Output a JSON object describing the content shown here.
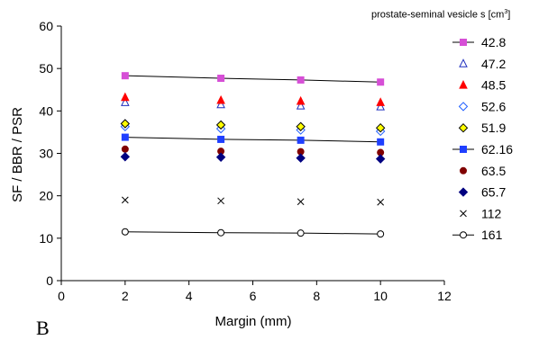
{
  "panel_label": "B",
  "legend_title": {
    "text": "prostate-seminal vesicle s [cm",
    "sup": "3",
    "close": "]"
  },
  "chart_data": {
    "type": "scatter",
    "xlabel": "Margin (mm)",
    "ylabel": "SF / BBR / PSR",
    "xlim": [
      0,
      12
    ],
    "ylim": [
      0,
      60
    ],
    "xticks": [
      0,
      2,
      4,
      6,
      8,
      10,
      12
    ],
    "yticks": [
      0,
      10,
      20,
      30,
      40,
      50,
      60
    ],
    "grid": false,
    "legend_position": "right",
    "x": [
      2,
      5,
      7.5,
      10
    ],
    "series": [
      {
        "name": "42.8",
        "values": [
          48.3,
          47.7,
          47.3,
          46.8
        ],
        "marker": "square",
        "color": "#d64fd6",
        "fill": "#d64fd6",
        "line": true
      },
      {
        "name": "47.2",
        "values": [
          42.0,
          41.5,
          41.2,
          41.0
        ],
        "marker": "triangle",
        "color": "#1f2fbf",
        "fill": "none",
        "line": false
      },
      {
        "name": "48.5",
        "values": [
          43.2,
          42.5,
          42.3,
          42.0
        ],
        "marker": "triangle",
        "color": "#ff0000",
        "fill": "#ff0000",
        "line": false
      },
      {
        "name": "52.6",
        "values": [
          36.3,
          35.8,
          35.5,
          35.2
        ],
        "marker": "diamond",
        "color": "#1f5fff",
        "fill": "none",
        "line": false
      },
      {
        "name": "51.9",
        "values": [
          37.0,
          36.7,
          36.3,
          36.0
        ],
        "marker": "diamond",
        "color": "#000000",
        "fill": "#ffff00",
        "line": false
      },
      {
        "name": "62.16",
        "values": [
          33.8,
          33.3,
          33.1,
          32.7
        ],
        "marker": "square",
        "color": "#1f3fff",
        "fill": "#1f3fff",
        "line": true
      },
      {
        "name": "63.5",
        "values": [
          31.0,
          30.5,
          30.4,
          30.2
        ],
        "marker": "circle",
        "color": "#800000",
        "fill": "#800000",
        "line": false
      },
      {
        "name": "65.7",
        "values": [
          29.2,
          29.1,
          28.9,
          28.7
        ],
        "marker": "diamond",
        "color": "#000080",
        "fill": "#000080",
        "line": false
      },
      {
        "name": "112",
        "values": [
          19.0,
          18.8,
          18.6,
          18.5
        ],
        "marker": "x",
        "color": "#000000",
        "fill": "none",
        "line": false
      },
      {
        "name": "161",
        "values": [
          11.5,
          11.3,
          11.2,
          11.0
        ],
        "marker": "circle",
        "color": "#000000",
        "fill": "#ffffff",
        "line": true
      }
    ]
  }
}
